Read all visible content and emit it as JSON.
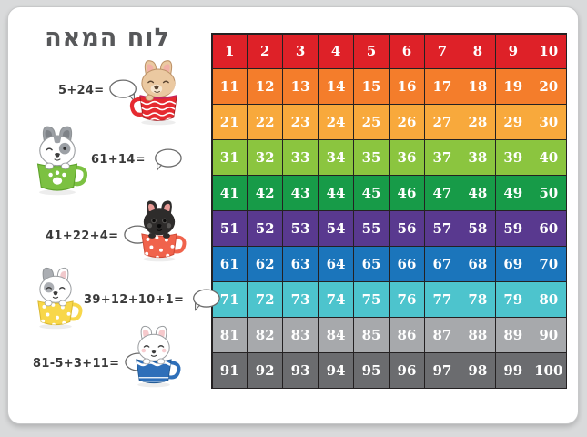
{
  "title": "לוח המאה",
  "problems": [
    {
      "expression": "5+24="
    },
    {
      "expression": "61+14="
    },
    {
      "expression": "41+22+4="
    },
    {
      "expression": "39+12+10+1="
    },
    {
      "expression": "81-5+3+11="
    }
  ],
  "grid": {
    "rows": [
      {
        "color": "#DE2128",
        "numbers": [
          1,
          2,
          3,
          4,
          5,
          6,
          7,
          8,
          9,
          10
        ]
      },
      {
        "color": "#F47D2B",
        "numbers": [
          11,
          12,
          13,
          14,
          15,
          16,
          17,
          18,
          19,
          20
        ]
      },
      {
        "color": "#F8A93C",
        "numbers": [
          21,
          22,
          23,
          24,
          25,
          26,
          27,
          28,
          29,
          30
        ]
      },
      {
        "color": "#8BC53F",
        "numbers": [
          31,
          32,
          33,
          34,
          35,
          36,
          37,
          38,
          39,
          40
        ]
      },
      {
        "color": "#179B48",
        "numbers": [
          41,
          42,
          43,
          44,
          45,
          46,
          47,
          48,
          49,
          50
        ]
      },
      {
        "color": "#59398F",
        "numbers": [
          51,
          52,
          53,
          54,
          55,
          56,
          57,
          58,
          59,
          60
        ]
      },
      {
        "color": "#1B75BB",
        "numbers": [
          61,
          62,
          63,
          64,
          65,
          66,
          67,
          68,
          69,
          70
        ]
      },
      {
        "color": "#4DC4CD",
        "numbers": [
          71,
          72,
          73,
          74,
          75,
          76,
          77,
          78,
          79,
          80
        ]
      },
      {
        "color": "#A7A9AC",
        "numbers": [
          81,
          82,
          83,
          84,
          85,
          86,
          87,
          88,
          89,
          90
        ]
      },
      {
        "color": "#6B6C6F",
        "numbers": [
          91,
          92,
          93,
          94,
          95,
          96,
          97,
          98,
          99,
          100
        ]
      }
    ],
    "line_color": "#242122"
  },
  "illustrations": [
    {
      "name": "tan-dog-in-red-wavy-cup",
      "dog_color": "#EBC9A1",
      "accent_color": "#F2B0A6",
      "cup_color": "#E52A30",
      "pattern": "waves"
    },
    {
      "name": "gray-white-dog-in-green-paw-cup",
      "dog_color": "#FFFFFF",
      "accent_color": "#9CA0A5",
      "cup_color": "#7CC142",
      "pattern": "paw-print"
    },
    {
      "name": "black-dog-in-coral-dotted-cup",
      "dog_color": "#2E2C2B",
      "accent_color": "#E89A96",
      "cup_color": "#F0634C",
      "pattern": "dots"
    },
    {
      "name": "white-gray-dog-in-yellow-dotted-cup",
      "dog_color": "#FFFFFF",
      "accent_color": "#ABAEB3",
      "cup_color": "#F8D74A",
      "pattern": "dots"
    },
    {
      "name": "white-dog-in-blue-wave-cup",
      "dog_color": "#FFFFFF",
      "accent_color": "#F6C9CC",
      "cup_color": "#2E6FB9",
      "pattern": "waves"
    }
  ],
  "theme": {
    "background": "#D9DADB",
    "card": "#FFFFFF",
    "title_color": "#57585A",
    "text_color": "#3A3A3A"
  }
}
